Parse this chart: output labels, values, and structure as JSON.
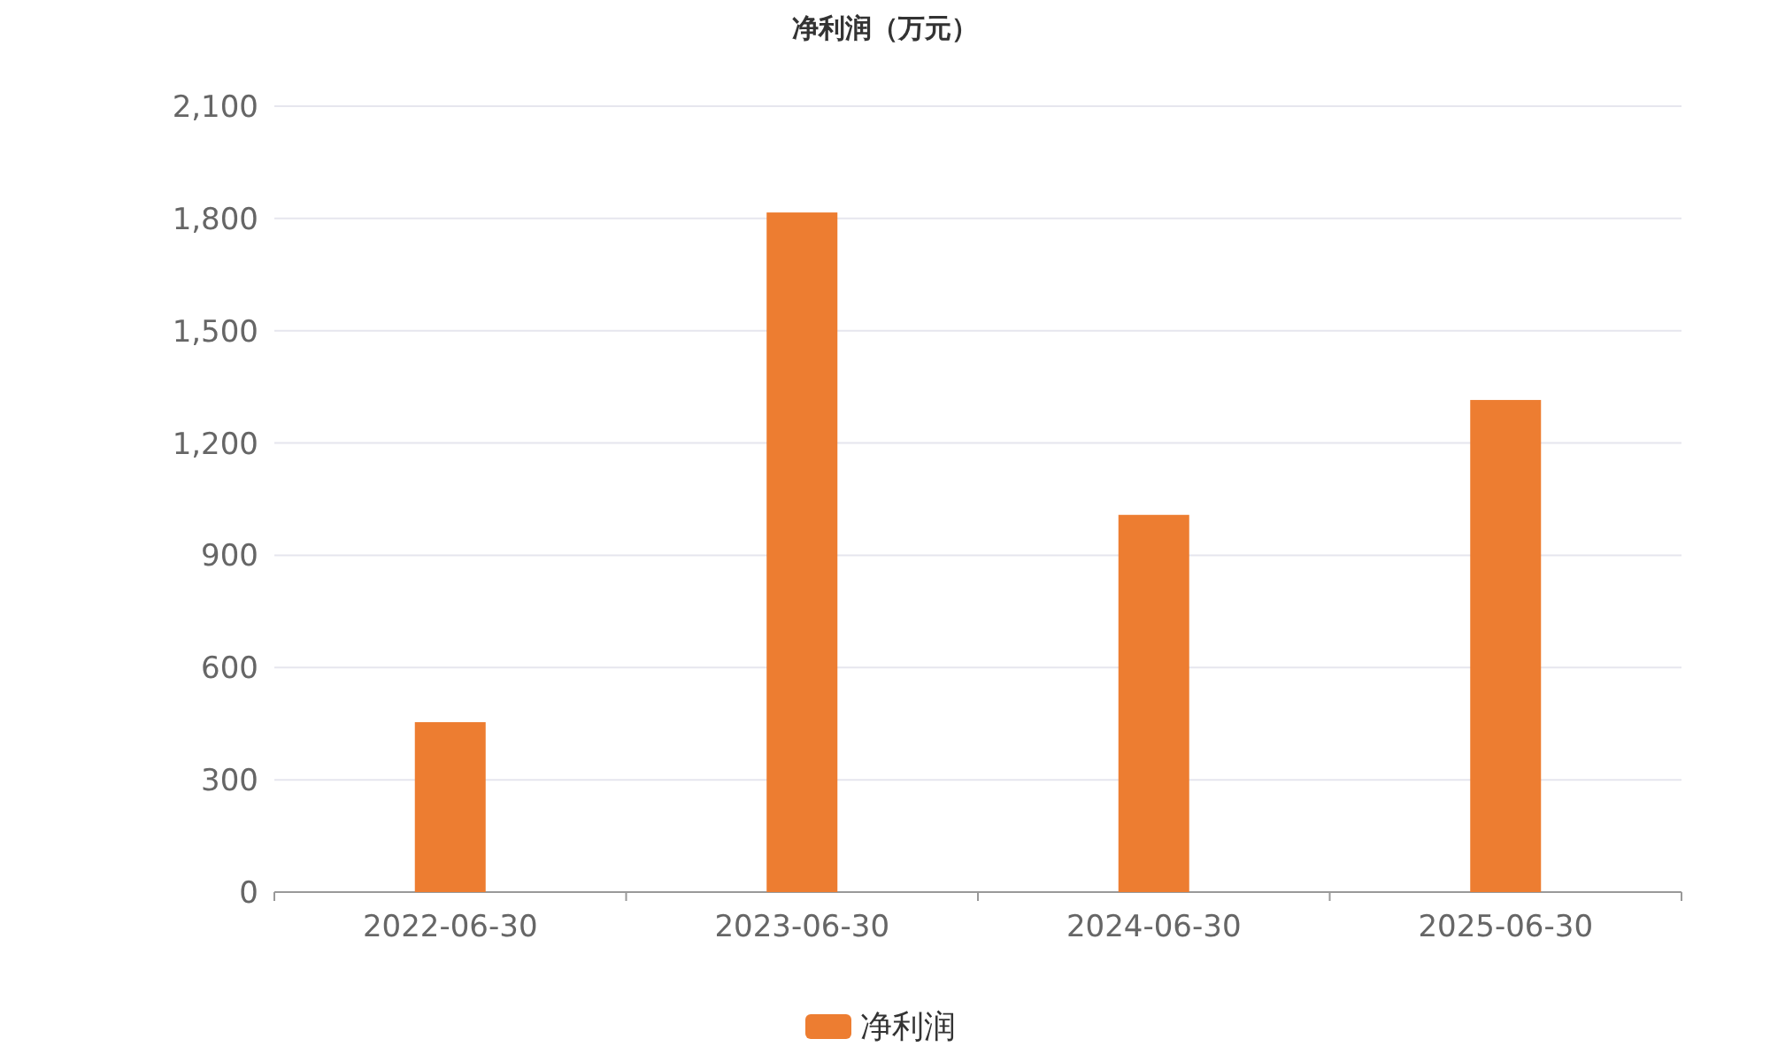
{
  "chart_data": {
    "type": "bar",
    "title": "净利润（万元）",
    "categories": [
      "2022-06-30",
      "2023-06-30",
      "2024-06-30",
      "2025-06-30"
    ],
    "series": [
      {
        "name": "净利润",
        "color": "#ed7d31",
        "values": [
          454,
          1816,
          1008,
          1315
        ]
      }
    ],
    "ylim": [
      0,
      2100
    ],
    "yticks": [
      0,
      300,
      600,
      900,
      {
        "value": 1200,
        "label": "1,200"
      },
      {
        "value": 1500,
        "label": "1,500"
      },
      {
        "value": 1800,
        "label": "1,800"
      },
      {
        "value": 2100,
        "label": "2,100"
      }
    ],
    "grid": "y",
    "legend": "bottom"
  }
}
